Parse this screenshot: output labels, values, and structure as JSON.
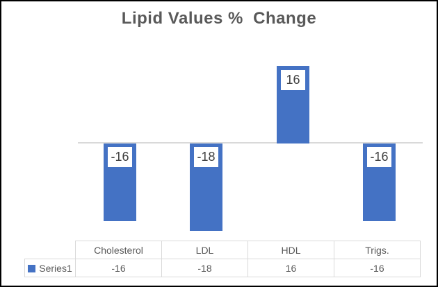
{
  "chart_data": {
    "type": "bar",
    "title": "Lipid Values %  Change",
    "categories": [
      "Cholesterol",
      "LDL",
      "HDL",
      "Trigs."
    ],
    "series": [
      {
        "name": "Series1",
        "values": [
          -16,
          -18,
          16,
          -16
        ]
      }
    ],
    "data_labels": [
      "-16",
      "-18",
      "16",
      "-16"
    ],
    "ylim": [
      -20,
      18
    ],
    "grid": false,
    "y_axis_shown": false,
    "x_axis": "zero baseline only",
    "legend_position": "data-table-row-header",
    "data_table_shown": true
  },
  "colors": {
    "background": "#FFFFFF",
    "frame_border": "#000000",
    "bar_fill": "#4472C4",
    "axis_line": "#D9D9D9",
    "title_text": "#595959",
    "data_label_text": "#404040",
    "data_label_bg": "#FFFFFF",
    "table_text": "#595959",
    "table_border": "#D9D9D9"
  }
}
